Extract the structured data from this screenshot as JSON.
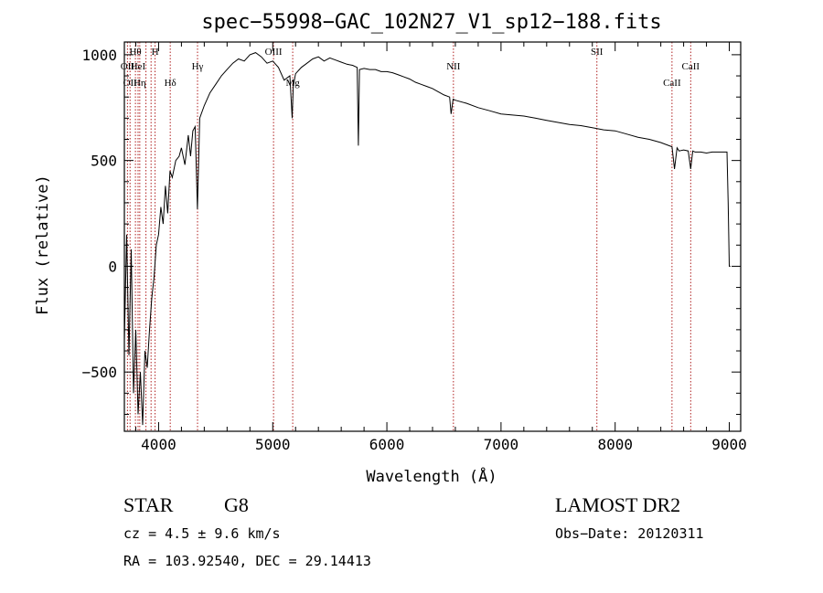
{
  "chart_data": {
    "type": "line",
    "title": "spec−55998−GAC_102N27_V1_sp12−188.fits",
    "xlabel": "Wavelength (Å)",
    "ylabel": "Flux (relative)",
    "xlim": [
      3700,
      9100
    ],
    "ylim": [
      -780,
      1060
    ],
    "xticks": [
      4000,
      5000,
      6000,
      7000,
      8000,
      9000
    ],
    "yticks": [
      -500,
      0,
      500,
      1000
    ],
    "ytick_labels": [
      "−500",
      "0",
      "500",
      "1000"
    ],
    "grid": false,
    "series": [
      {
        "x": [
          3700,
          3720,
          3740,
          3760,
          3780,
          3800,
          3820,
          3840,
          3860,
          3880,
          3900,
          3920,
          3940,
          3960,
          3980,
          4000,
          4020,
          4040,
          4060,
          4080,
          4100,
          4120,
          4150,
          4180,
          4200,
          4230,
          4260,
          4280,
          4300,
          4320,
          4340,
          4360,
          4400,
          4450,
          4500,
          4550,
          4600,
          4650,
          4700,
          4750,
          4800,
          4850,
          4900,
          4950,
          5000,
          5050,
          5100,
          5150,
          5170,
          5180,
          5200,
          5250,
          5300,
          5350,
          5400,
          5450,
          5500,
          5550,
          5600,
          5650,
          5700,
          5740,
          5750,
          5760,
          5800,
          5850,
          5900,
          5950,
          6000,
          6050,
          6100,
          6150,
          6200,
          6250,
          6300,
          6350,
          6400,
          6450,
          6500,
          6550,
          6563,
          6580,
          6600,
          6700,
          6800,
          6900,
          7000,
          7100,
          7200,
          7300,
          7400,
          7500,
          7600,
          7700,
          7800,
          7900,
          8000,
          8100,
          8200,
          8300,
          8400,
          8498,
          8520,
          8542,
          8560,
          8600,
          8640,
          8662,
          8680,
          8700,
          8750,
          8800,
          8850,
          8900,
          8950,
          8980,
          8990,
          9000,
          9010
        ],
        "y": [
          -350,
          150,
          -420,
          80,
          -600,
          -300,
          -700,
          -500,
          -750,
          -400,
          -480,
          -300,
          -150,
          -50,
          100,
          150,
          280,
          200,
          380,
          250,
          450,
          420,
          500,
          520,
          560,
          480,
          620,
          520,
          640,
          660,
          270,
          700,
          760,
          820,
          860,
          900,
          930,
          960,
          980,
          970,
          1000,
          1010,
          990,
          960,
          970,
          940,
          880,
          900,
          700,
          850,
          910,
          940,
          960,
          980,
          990,
          970,
          985,
          975,
          965,
          955,
          950,
          940,
          570,
          930,
          935,
          930,
          930,
          920,
          920,
          915,
          905,
          895,
          885,
          870,
          860,
          850,
          840,
          825,
          810,
          800,
          720,
          790,
          785,
          770,
          750,
          735,
          720,
          715,
          710,
          700,
          690,
          680,
          670,
          665,
          655,
          645,
          640,
          625,
          610,
          600,
          585,
          565,
          460,
          560,
          545,
          550,
          545,
          460,
          545,
          540,
          540,
          535,
          540,
          540,
          540,
          540,
          300,
          0,
          0
        ]
      }
    ],
    "spectral_lines": [
      {
        "wave": 3727,
        "label": "OII",
        "row": 2
      },
      {
        "wave": 3750,
        "label": "OII",
        "row": 3
      },
      {
        "wave": 3797,
        "label": "Hθ",
        "row": 1
      },
      {
        "wave": 3820,
        "label": "HeI",
        "row": 2
      },
      {
        "wave": 3835,
        "label": "Hη",
        "row": 3
      },
      {
        "wave": 3889,
        "label": "",
        "row": 0
      },
      {
        "wave": 3934,
        "label": "",
        "row": 0
      },
      {
        "wave": 3969,
        "label": "H",
        "row": 1
      },
      {
        "wave": 4102,
        "label": "Hδ",
        "row": 3
      },
      {
        "wave": 4341,
        "label": "Hγ",
        "row": 2
      },
      {
        "wave": 5007,
        "label": "OIII",
        "row": 1
      },
      {
        "wave": 5175,
        "label": "Mg",
        "row": 3
      },
      {
        "wave": 6583,
        "label": "NII",
        "row": 2
      },
      {
        "wave": 7840,
        "label": "SII",
        "row": 1
      },
      {
        "wave": 8498,
        "label": "CaII",
        "row": 3
      },
      {
        "wave": 8662,
        "label": "CaII",
        "row": 2
      }
    ]
  },
  "info": {
    "class": "STAR",
    "subclass": "G8",
    "survey": "LAMOST DR2",
    "cz": "cz = 4.5 ± 9.6 km/s",
    "obs_date": "Obs−Date: 20120311",
    "coords": "RA = 103.92540, DEC =  29.14413"
  },
  "colors": {
    "line_markers": "#b02020",
    "spectrum": "#000000"
  }
}
